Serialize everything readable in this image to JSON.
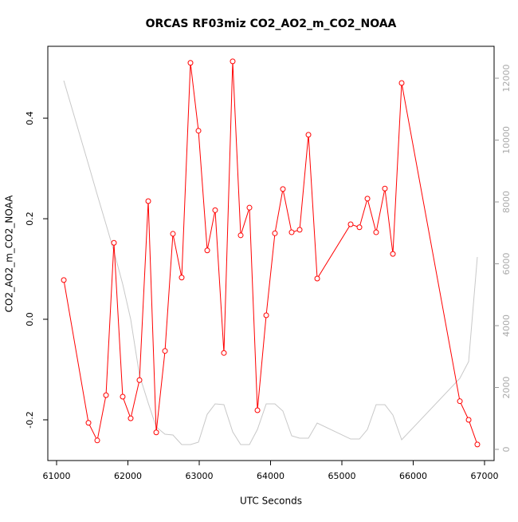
{
  "chart_data": {
    "type": "line",
    "title": "ORCAS RF03miz CO2_AO2_m_CO2_NOAA",
    "x_label": "UTC Seconds",
    "y_label": "CO2_AO2_m_CO2_NOAA",
    "x": [
      61101,
      61447,
      61570,
      61693,
      61804,
      61927,
      62039,
      62162,
      62285,
      62397,
      62520,
      62631,
      62754,
      62877,
      62989,
      63112,
      63223,
      63346,
      63469,
      63581,
      63704,
      63816,
      63939,
      64061,
      64173,
      64296,
      64408,
      64531,
      64654,
      65123,
      65246,
      65358,
      65480,
      65603,
      65715,
      65838,
      66654,
      66777,
      66899
    ],
    "series": [
      {
        "color": "#ff0000",
        "markers": true,
        "values": [
          0.078,
          -0.206,
          -0.241,
          -0.151,
          0.152,
          -0.154,
          -0.197,
          -0.121,
          0.235,
          -0.225,
          -0.063,
          0.17,
          0.083,
          0.51,
          0.375,
          0.137,
          0.217,
          -0.067,
          0.513,
          0.167,
          0.222,
          -0.181,
          0.008,
          0.171,
          0.259,
          0.173,
          0.178,
          0.367,
          0.081,
          0.189,
          0.183,
          0.24,
          0.173,
          0.26,
          0.13,
          0.47,
          -0.163,
          -0.2,
          -0.249
        ]
      },
      {
        "color": "#c8c8c8",
        "markers": false,
        "axis": "y2",
        "values": [
          11923,
          9213,
          8232,
          7277,
          6400,
          5342,
          4206,
          2400,
          1497,
          723,
          490,
          465,
          155,
          155,
          232,
          1135,
          1471,
          1445,
          568,
          155,
          155,
          645,
          1471,
          1471,
          1239,
          439,
          361,
          361,
          852,
          335,
          335,
          645,
          1445,
          1445,
          1110,
          310,
          2297,
          2839,
          6219
        ]
      }
    ],
    "xlim": [
      60877,
      67134
    ],
    "ylim": [
      -0.281,
      0.543
    ],
    "y2lim": [
      -361,
      13032
    ],
    "xticks": [
      61000,
      62000,
      63000,
      64000,
      65000,
      66000,
      67000
    ],
    "yticks": [
      -0.2,
      {
        "value": 0,
        "label": "0.0"
      },
      0.2,
      0.4
    ],
    "y2ticks": [
      0,
      2000,
      4000,
      6000,
      8000,
      10000,
      12000
    ]
  }
}
